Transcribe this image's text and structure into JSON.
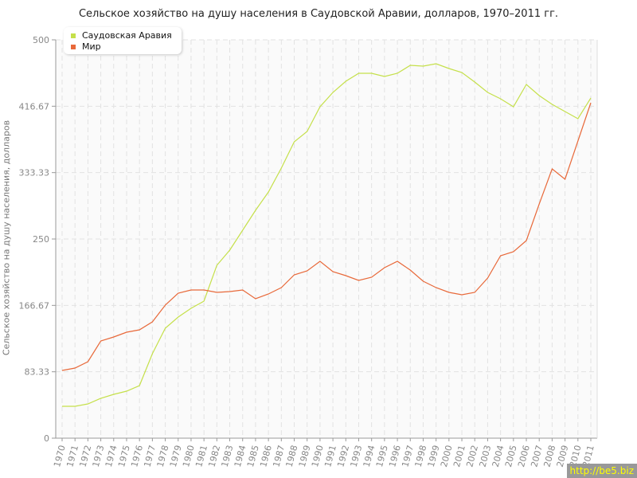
{
  "chart_data": {
    "type": "line",
    "title": "Сельское хозяйство на душу населения в Саудовской Аравии, долларов, 1970–2011 гг.",
    "xlabel": "",
    "ylabel": "Сельское хозяйство на душу населения, долларов",
    "ylim": [
      0,
      500
    ],
    "yticks": [
      "0",
      "83.33",
      "166.67",
      "250",
      "333.33",
      "416.67",
      "500"
    ],
    "grid": true,
    "legend_position": "top-left",
    "x": [
      1970,
      1971,
      1972,
      1973,
      1974,
      1975,
      1976,
      1977,
      1978,
      1979,
      1980,
      1981,
      1982,
      1983,
      1984,
      1985,
      1986,
      1987,
      1988,
      1989,
      1990,
      1991,
      1992,
      1993,
      1994,
      1995,
      1996,
      1997,
      1998,
      1999,
      2000,
      2001,
      2002,
      2003,
      2004,
      2005,
      2006,
      2007,
      2008,
      2009,
      2010,
      2011
    ],
    "series": [
      {
        "name": "Саудовская Аравия",
        "color": "#c5e04a",
        "values": [
          40,
          40,
          43,
          50,
          55,
          59,
          66,
          106,
          138,
          152,
          163,
          172,
          217,
          236,
          261,
          286,
          309,
          339,
          372,
          385,
          416,
          434,
          448,
          458,
          458,
          454,
          458,
          468,
          467,
          470,
          464,
          459,
          447,
          434,
          426,
          416,
          444,
          430,
          419,
          410,
          401,
          427
        ]
      },
      {
        "name": "Мир",
        "color": "#e8693a",
        "values": [
          85,
          88,
          96,
          122,
          127,
          133,
          136,
          146,
          167,
          182,
          186,
          186,
          183,
          184,
          186,
          175,
          181,
          189,
          205,
          210,
          222,
          209,
          204,
          198,
          202,
          214,
          222,
          211,
          197,
          189,
          183,
          180,
          183,
          201,
          229,
          234,
          248,
          294,
          338,
          325,
          373,
          421
        ]
      }
    ]
  },
  "watermark": "http://be5.biz"
}
